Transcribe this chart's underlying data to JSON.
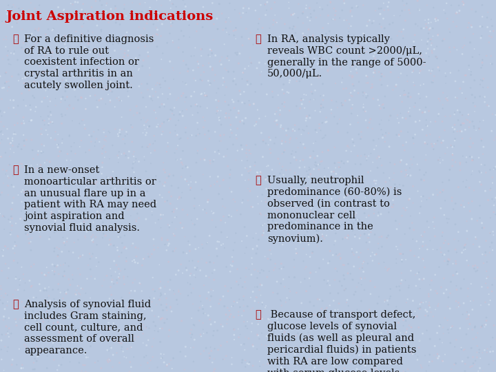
{
  "title": "Joint Aspiration indications",
  "title_color": "#cc0000",
  "title_fontsize": 14,
  "background_color_top": "#c8d8ee",
  "background_color": "#b8c8e0",
  "text_color": "#111111",
  "bullet_color": "#aa0000",
  "left_bullets": [
    "For a definitive diagnosis\nof RA to rule out\ncoexistent infection or\ncrystal arthritis in an\nacutely swollen joint.",
    "In a new-onset\nmonoarticular arthritis or\nan unusual flare up in a\npatient with RA may need\njoint aspiration and\nsynovial fluid analysis.",
    "Analysis of synovial fluid\nincludes Gram staining,\ncell count, culture, and\nassessment of overall\nappearance."
  ],
  "right_bullets": [
    "In RA, analysis typically\nreveals WBC count >2000/μL,\ngenerally in the range of 5000-\n50,000/μL.",
    "Usually, neutrophil\npredominance (60-80%) is\nobserved (in contrast to\nmononuclear cell\npredominance in the\nsynovium).",
    " Because of transport defect,\nglucose levels of synovial\nfluids (as well as pleural and\npericardial fluids) in patients\nwith RA are low compared\nwith serum glucose levels."
  ],
  "font_family": "serif",
  "body_fontsize": 10.5,
  "figwidth": 7.2,
  "figheight": 5.4,
  "dpi": 100
}
